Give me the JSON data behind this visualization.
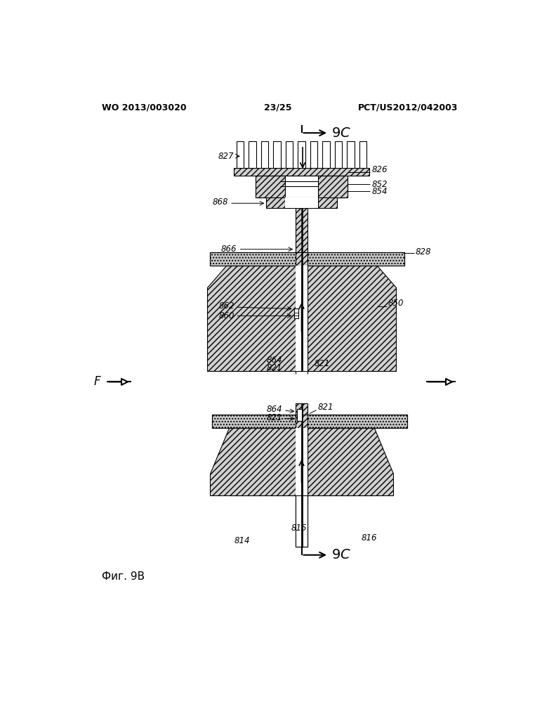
{
  "bg_color": "#ffffff",
  "header_left": "WO 2013/003020",
  "header_center": "23/25",
  "header_right": "PCT/US2012/042003",
  "fig_label": "Фиг. 9В",
  "hatch_diag": "////",
  "hatch_dot": "....",
  "line_color": "#000000",
  "hatch_fc": "#d0d0d0",
  "dot_fc": "#c8c8c8"
}
